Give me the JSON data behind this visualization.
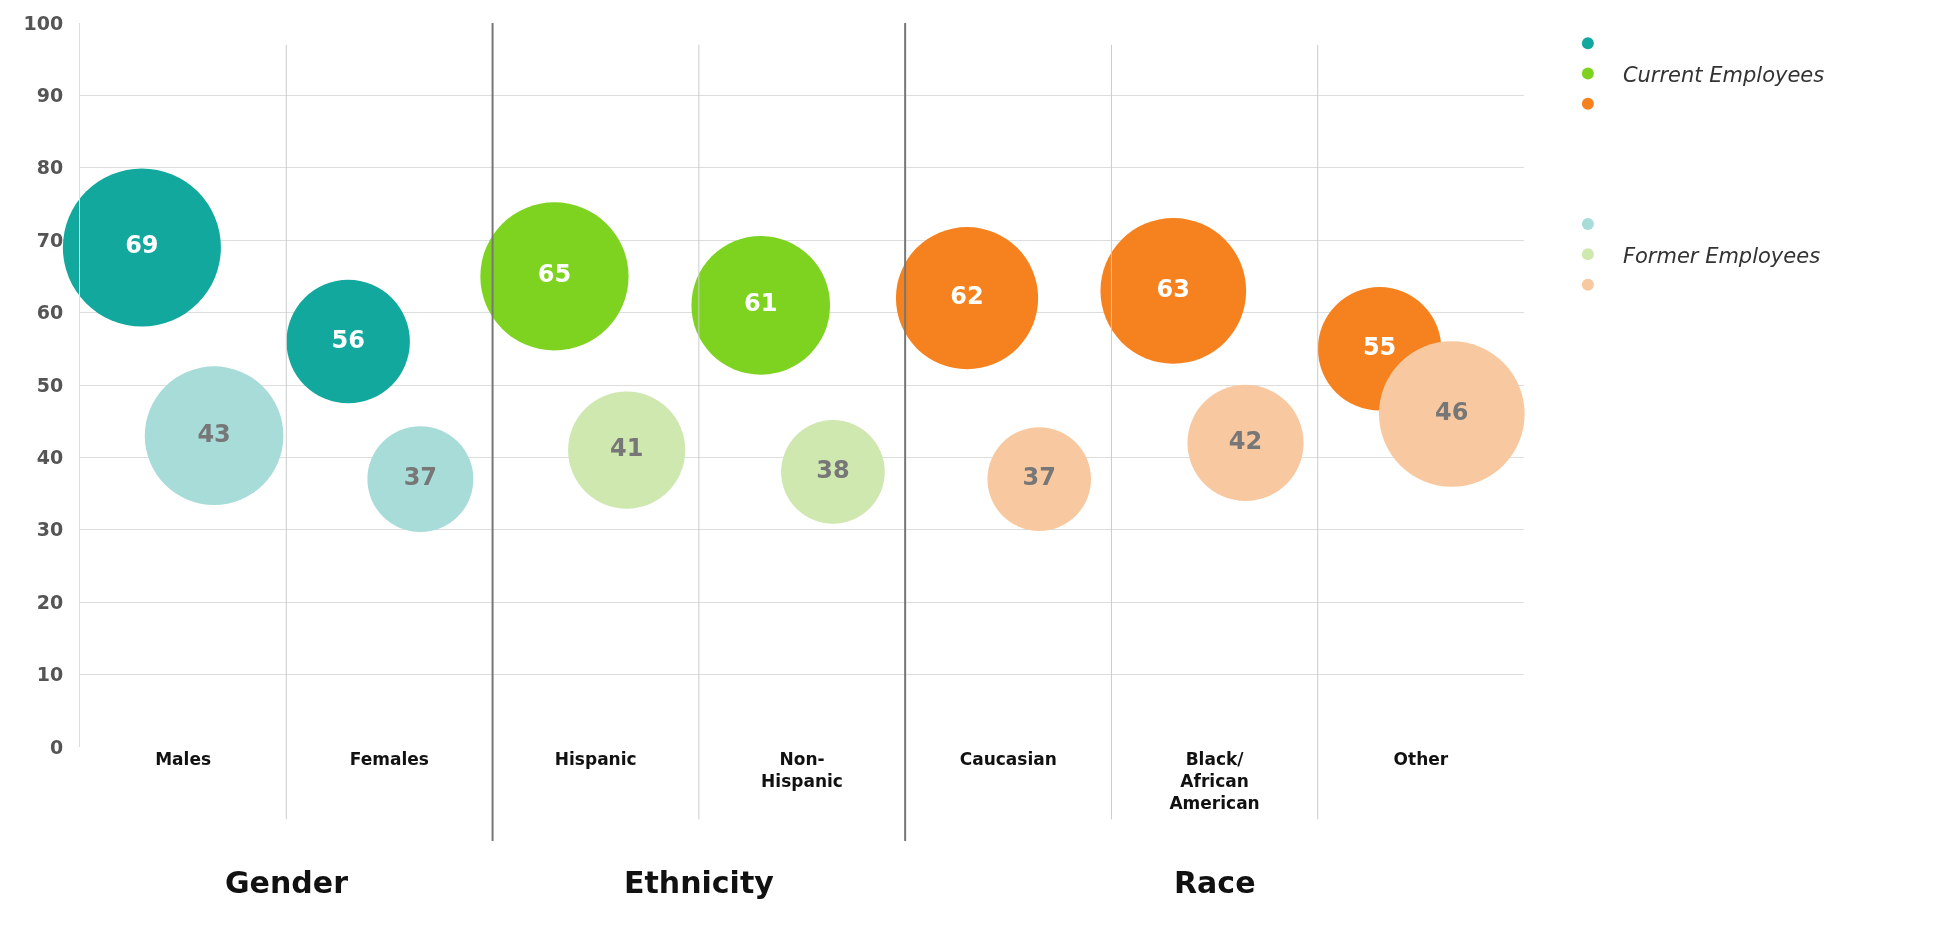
{
  "chart_data": {
    "type": "bubble",
    "categories": [
      "Males",
      "Females",
      "Hispanic",
      "Non-Hispanic",
      "Caucasian",
      "Black/African American",
      "Other"
    ],
    "series": [
      {
        "name": "Current Employees",
        "colors": [
          "#12a89d",
          "#12a89d",
          "#7ed321",
          "#7ed321",
          "#f5821f",
          "#f5821f",
          "#f5821f"
        ],
        "values": [
          69,
          56,
          65,
          61,
          62,
          63,
          55
        ],
        "sizes": [
          1,
          0.61,
          0.88,
          0.77,
          0.81,
          0.85,
          0.61
        ]
      },
      {
        "name": "Former Employees",
        "colors": [
          "#a8dcd8",
          "#a8dcd8",
          "#cfe8b0",
          "#cfe8b0",
          "#f8c9a0",
          "#f8c9a0",
          "#f8c9a0"
        ],
        "values": [
          43,
          37,
          41,
          38,
          37,
          42,
          46
        ],
        "sizes": [
          0.77,
          0.45,
          0.55,
          0.43,
          0.43,
          0.54,
          0.85
        ]
      }
    ],
    "ylim": [
      0,
      100
    ],
    "yticks": [
      0,
      10,
      20,
      30,
      40,
      50,
      60,
      70,
      80,
      90,
      100
    ],
    "grid": true,
    "legend": "right",
    "data_labels": true,
    "annotations": [
      "Gender",
      "Ethnicity",
      "Race"
    ]
  }
}
